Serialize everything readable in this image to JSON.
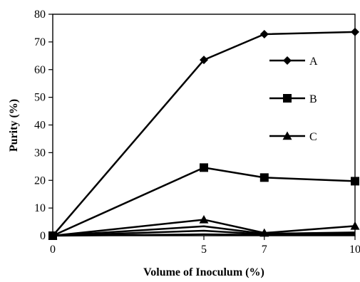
{
  "chart_data": {
    "type": "line",
    "title": "",
    "xlabel": "Volume of Inoculum (%)",
    "ylabel": "Purity (%)",
    "x": [
      0,
      5,
      7,
      10
    ],
    "x_tick_labels": [
      "0",
      "5",
      "7",
      "10"
    ],
    "y_tick_labels": [
      "0",
      "10",
      "20",
      "30",
      "40",
      "50",
      "60",
      "70",
      "80"
    ],
    "ylim": [
      0,
      80
    ],
    "grid": false,
    "legend_position": "right",
    "series": [
      {
        "name": "A",
        "marker": "diamond",
        "values": [
          0,
          63.5,
          72.8,
          73.6
        ]
      },
      {
        "name": "B",
        "marker": "square",
        "values": [
          0,
          24.6,
          21.0,
          19.7
        ]
      },
      {
        "name": "C",
        "marker": "triangle",
        "values": [
          0,
          5.8,
          1.0,
          3.5
        ]
      }
    ],
    "unlabeled_series": [
      {
        "marker": "none",
        "values": [
          0,
          3.4,
          0.7,
          1.2
        ]
      },
      {
        "marker": "none",
        "values": [
          0,
          1.8,
          0.5,
          0.6
        ]
      },
      {
        "marker": "none",
        "values": [
          0,
          0.5,
          0.3,
          0.3
        ]
      }
    ],
    "colors": {
      "line": "#000000",
      "marker": "#000000"
    }
  }
}
